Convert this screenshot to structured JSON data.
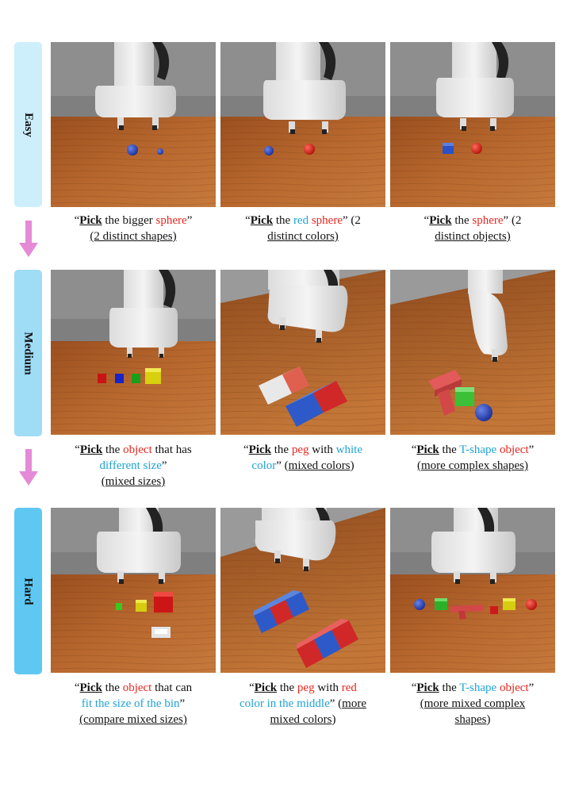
{
  "levels": [
    {
      "label": "Easy",
      "color": "#cdeefb"
    },
    {
      "label": "Medium",
      "color": "#9fdcf6"
    },
    {
      "label": "Hard",
      "color": "#5fc8f2"
    }
  ],
  "arrow_color": "#e48ad6",
  "captions": {
    "easy": [
      {
        "q1": "“",
        "pick": "Pick",
        "t1": " the bigger ",
        "c1": "sphere",
        "t2": "”",
        "note": "(2 distinct shapes)"
      },
      {
        "q1": "“",
        "pick": "Pick",
        "t1": " the ",
        "c1": "red",
        "t1b": " ",
        "c1b": "sphere",
        "t2": "” (2",
        "note": "distinct colors)"
      },
      {
        "q1": "“",
        "pick": "Pick",
        "t1": " the ",
        "c1": "sphere",
        "t2": "” (2",
        "note": "distinct objects)"
      }
    ],
    "medium": [
      {
        "q1": "“",
        "pick": "Pick",
        "t1": " the ",
        "c1": "object",
        "t2": " that has",
        "c2": "different size",
        "t3": "”",
        "note": "(mixed sizes)"
      },
      {
        "q1": "“",
        "pick": "Pick",
        "t1": " the ",
        "c1": "peg",
        "t2": " with ",
        "c2": "white",
        "c3": "color",
        "t3": "” (",
        "note": "mixed colors",
        "t4": ")"
      },
      {
        "q1": "“",
        "pick": "Pick",
        "t1": " the ",
        "c1": "T-shape",
        "t1b": " ",
        "c1b": "object",
        "t2": "”",
        "note": "(more complex shapes)"
      }
    ],
    "hard": [
      {
        "q1": "“",
        "pick": "Pick",
        "t1": " the ",
        "c1": "object",
        "t2": " that can",
        "c2": "fit the size of the bin",
        "t3": "”",
        "note": "(compare mixed sizes)"
      },
      {
        "q1": "“",
        "pick": "Pick",
        "t1": " the ",
        "c1": "peg",
        "t2": " with ",
        "c2": "red",
        "c3": "color in the middle",
        "t3": "” (",
        "note": "more",
        "note2": "mixed colors",
        "t4": ")"
      },
      {
        "q1": "“",
        "pick": "Pick",
        "t1": " the ",
        "c1": "T-shape",
        "t1b": " ",
        "c1b": "object",
        "t2": "”",
        "note": "(more mixed complex",
        "note2": "shapes",
        "t4": ")"
      }
    ]
  }
}
